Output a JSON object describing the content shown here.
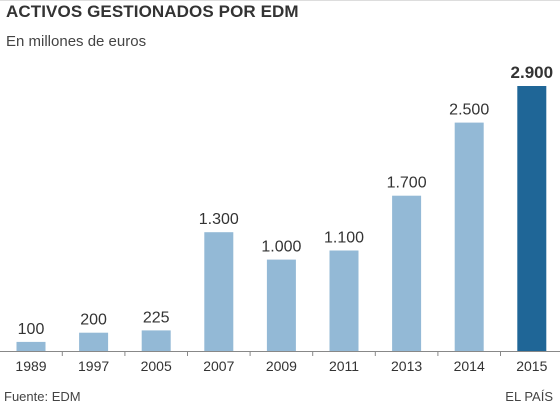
{
  "header": {
    "title": "ACTIVOS GESTIONADOS POR EDM",
    "subtitle": "En millones de euros"
  },
  "footer": {
    "source": "Fuente: EDM",
    "credit": "EL PAÍS"
  },
  "colors": {
    "bar": "#93b9d6",
    "bar_highlight": "#1f6697",
    "axis": "#888888",
    "text": "#333333"
  },
  "chart_data": {
    "type": "bar",
    "categories": [
      "1989",
      "1997",
      "2005",
      "2007",
      "2009",
      "2011",
      "2013",
      "2014",
      "2015"
    ],
    "values": [
      100,
      200,
      225,
      1300,
      1000,
      1100,
      1700,
      2500,
      2900
    ],
    "value_labels": [
      "100",
      "200",
      "225",
      "1.300",
      "1.000",
      "1.100",
      "1.700",
      "2.500",
      "2.900"
    ],
    "highlight_index": 8,
    "title": "ACTIVOS GESTIONADOS POR EDM",
    "subtitle": "En millones de euros",
    "xlabel": "",
    "ylabel": "",
    "ylim": [
      0,
      2900
    ],
    "grid": false,
    "legend": "none"
  }
}
